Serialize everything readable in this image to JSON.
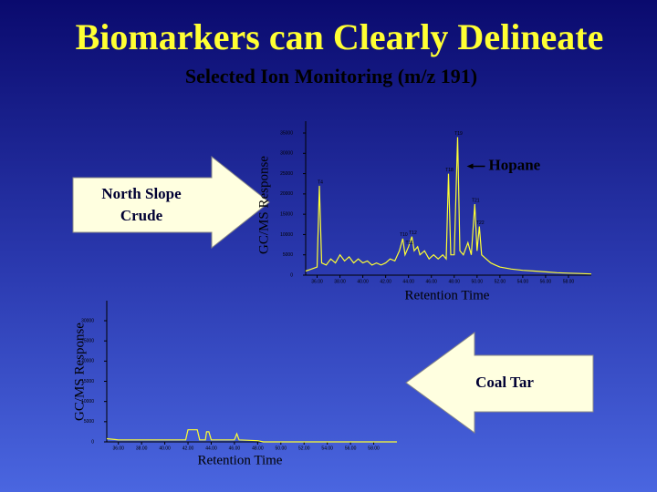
{
  "slide": {
    "title": "Biomarkers can Clearly Delineate",
    "subtitle": "Selected Ion Monitoring (m/z 191)"
  },
  "chart_data": [
    {
      "type": "line",
      "x_label": "Retention Time",
      "y_label": "GC/MS Response",
      "arrow_label": "North Slope Crude",
      "x": [
        35.0,
        35.5,
        36.0,
        36.2,
        36.4,
        36.8,
        37.2,
        37.6,
        38.0,
        38.4,
        38.8,
        39.2,
        39.6,
        40.0,
        40.4,
        40.8,
        41.2,
        41.6,
        42.0,
        42.4,
        42.8,
        43.2,
        43.5,
        43.7,
        44.0,
        44.3,
        44.5,
        44.8,
        45.0,
        45.4,
        45.8,
        46.2,
        46.6,
        47.0,
        47.3,
        47.5,
        47.7,
        48.0,
        48.3,
        48.5,
        48.8,
        49.2,
        49.5,
        49.8,
        50.0,
        50.2,
        50.4,
        50.8,
        51.2,
        51.6,
        52.0,
        53.0,
        54.0,
        55.0,
        56.0,
        57.0,
        58.0,
        59.0,
        60.0
      ],
      "series": [
        {
          "color": "#ffff33",
          "values": [
            1000,
            1500,
            2000,
            22000,
            3000,
            2500,
            4000,
            3000,
            5000,
            3500,
            4500,
            3000,
            4000,
            3000,
            3500,
            2500,
            3000,
            2500,
            3000,
            4000,
            3500,
            6000,
            9000,
            5000,
            7000,
            9500,
            6000,
            7000,
            5000,
            6000,
            4000,
            5000,
            4000,
            5000,
            4000,
            25000,
            5000,
            5000,
            34000,
            6000,
            5000,
            8000,
            5000,
            17500,
            6000,
            12000,
            5000,
            4000,
            3000,
            2500,
            2000,
            1500,
            1200,
            1000,
            800,
            600,
            500,
            400,
            300
          ]
        }
      ],
      "xlim": [
        35,
        60
      ],
      "xticks": [
        {
          "value": 36,
          "label": "36.00"
        },
        {
          "value": 38,
          "label": "38.00"
        },
        {
          "value": 40,
          "label": "40.00"
        },
        {
          "value": 42,
          "label": "42.00"
        },
        {
          "value": 44,
          "label": "44.00"
        },
        {
          "value": 46,
          "label": "46.00"
        },
        {
          "value": 48,
          "label": "48.00"
        },
        {
          "value": 50,
          "label": "50.00"
        },
        {
          "value": 52,
          "label": "52.00"
        },
        {
          "value": 54,
          "label": "54.00"
        },
        {
          "value": 56,
          "label": "56.00"
        },
        {
          "value": 58,
          "label": "58.00"
        }
      ],
      "ylim": [
        0,
        35000
      ],
      "yticks": [
        0,
        5000,
        10000,
        15000,
        20000,
        25000,
        30000,
        35000
      ],
      "annotations": [
        {
          "text": "T4",
          "x": 36.2,
          "y": 22000
        },
        {
          "text": "T10",
          "x": 43.5,
          "y": 9000
        },
        {
          "text": "T11",
          "x": 44.0,
          "y": 7000
        },
        {
          "text": "T12",
          "x": 44.3,
          "y": 9500
        },
        {
          "text": "T18",
          "x": 47.5,
          "y": 25000
        },
        {
          "text": "T19",
          "x": 48.3,
          "y": 34000
        },
        {
          "text": "T21",
          "x": 49.8,
          "y": 17500
        },
        {
          "text": "T22",
          "x": 50.2,
          "y": 12000
        }
      ],
      "callout": {
        "text": "Hopane",
        "x": 48.3,
        "y": 34000
      }
    },
    {
      "type": "line",
      "x_label": "Retention Time",
      "y_label": "GC/MS Response",
      "arrow_label": "Coal Tar",
      "x": [
        35.0,
        36.0,
        38.0,
        40.0,
        41.8,
        42.0,
        42.8,
        43.0,
        43.5,
        43.6,
        43.8,
        44.0,
        46.0,
        46.2,
        46.4,
        48.0,
        48.5,
        60.0
      ],
      "series": [
        {
          "color": "#ffff33",
          "values": [
            800,
            500,
            500,
            500,
            500,
            3000,
            3000,
            500,
            500,
            2500,
            2500,
            500,
            500,
            2000,
            500,
            300,
            0,
            0
          ]
        }
      ],
      "xlim": [
        35,
        60
      ],
      "xticks": [
        {
          "value": 36,
          "label": "36.00"
        },
        {
          "value": 38,
          "label": "38.00"
        },
        {
          "value": 40,
          "label": "40.00"
        },
        {
          "value": 42,
          "label": "42.00"
        },
        {
          "value": 44,
          "label": "44.00"
        },
        {
          "value": 46,
          "label": "46.00"
        },
        {
          "value": 48,
          "label": "48.00"
        },
        {
          "value": 50,
          "label": "50.00"
        },
        {
          "value": 52,
          "label": "52.00"
        },
        {
          "value": 54,
          "label": "54.00"
        },
        {
          "value": 56,
          "label": "56.00"
        },
        {
          "value": 58,
          "label": "58.00"
        }
      ],
      "ylim": [
        0,
        30000
      ],
      "yticks": [
        0,
        5000,
        10000,
        15000,
        20000,
        25000,
        30000
      ]
    }
  ]
}
